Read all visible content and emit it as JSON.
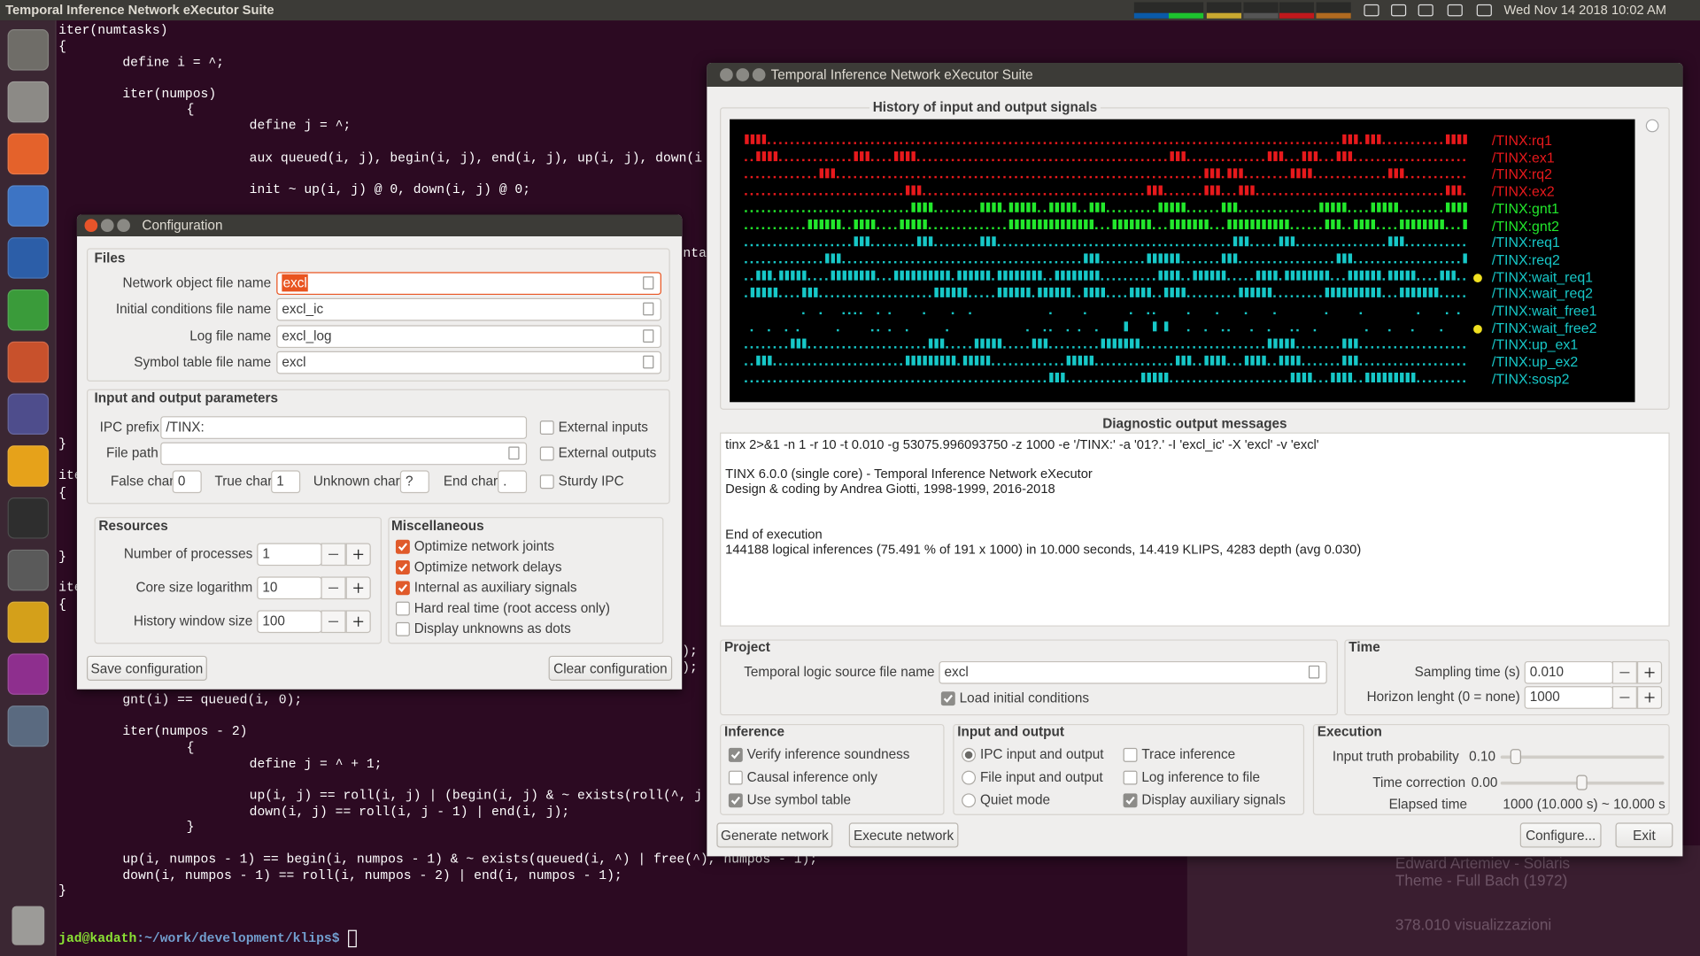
{
  "top_bar": {
    "title": "Temporal Inference Network eXecutor Suite",
    "clock": "Wed Nov 14 2018 10:02 AM"
  },
  "terminal": {
    "lines": [
      "iter(numtasks)",
      "{",
      "define i = ^;",
      "iter(numpos)",
      "{",
      "define  j = ^;",
      "aux queued(i, j), begin(i, j), end(i, j), up(i, j), down(i",
      "init ~ up(i, j) @ 0, down(i, j) @ 0;",
      "ntas",
      "}",
      "ite",
      "{",
      "}",
      "ite",
      "{",
      ");",
      ");",
      "gnt(i) == queued(i, 0);",
      "iter(numpos - 2)",
      "{",
      "define  j = ^ + 1;",
      "up(i, j) == roll(i, j) | (begin(i, j) & ~ exists(roll(^, j",
      "down(i, j) == roll(i, j - 1) | end(i, j);",
      "}",
      "up(i, numpos - 1) == begin(i, numpos - 1) & ~ exists(queued(i, ^) | free(^), numpos - 1);",
      "down(i, numpos - 1) == roll(i, numpos - 2) | end(i, numpos - 1);",
      "}"
    ],
    "prompt_user": "jad@kadath",
    "prompt_path": ":~/work/development/klips$"
  },
  "background": {
    "texts": [
      "Edward Artemiev - Solaris",
      "Theme - Full Bach (1972)",
      "378.010 visualizzazioni"
    ]
  },
  "config": {
    "title": "Configuration",
    "files": {
      "title": "Files",
      "fields": [
        {
          "label": "Network object file name",
          "value": "excl"
        },
        {
          "label": "Initial conditions file name",
          "value": "excl_ic"
        },
        {
          "label": "Log file name",
          "value": "excl_log"
        },
        {
          "label": "Symbol table file name",
          "value": "excl"
        }
      ]
    },
    "io": {
      "title": "Input and output parameters",
      "ipc_prefix_label": "IPC prefix",
      "ipc_prefix": "/TINX:",
      "file_path_label": "File path",
      "false_char_label": "False char",
      "false_char": "0",
      "true_char_label": "True char",
      "true_char": "1",
      "unknown_char_label": "Unknown char",
      "unknown_char": "?",
      "end_char_label": "End char",
      "end_char": ".",
      "checks": [
        {
          "label": "External inputs",
          "checked": false
        },
        {
          "label": "External outputs",
          "checked": false
        },
        {
          "label": "Sturdy IPC",
          "checked": false
        }
      ]
    },
    "resources": {
      "title": "Resources",
      "rows": [
        {
          "label": "Number of processes",
          "value": "1"
        },
        {
          "label": "Core size logarithm",
          "value": "10"
        },
        {
          "label": "History window size",
          "value": "100"
        }
      ]
    },
    "misc": {
      "title": "Miscellaneous",
      "checks": [
        {
          "label": "Optimize network joints",
          "checked": true
        },
        {
          "label": "Optimize network delays",
          "checked": true
        },
        {
          "label": "Internal as auxiliary signals",
          "checked": true
        },
        {
          "label": "Hard real time (root access only)",
          "checked": false
        },
        {
          "label": "Display unknowns as dots",
          "checked": false
        }
      ]
    },
    "buttons": [
      "Save configuration",
      "Clear configuration"
    ]
  },
  "main": {
    "title": "Temporal Inference Network eXecutor Suite",
    "history_title": "History of input and output signals",
    "signals": [
      {
        "name": "/TINX:rq1",
        "color": "#e8191c"
      },
      {
        "name": "/TINX:ex1",
        "color": "#e8191c"
      },
      {
        "name": "/TINX:rq2",
        "color": "#e8191c"
      },
      {
        "name": "/TINX:ex2",
        "color": "#e8191c"
      },
      {
        "name": "/TINX:gnt1",
        "color": "#22e82c"
      },
      {
        "name": "/TINX:gnt2",
        "color": "#22e82c"
      },
      {
        "name": "/TINX:req1",
        "color": "#17c8c8"
      },
      {
        "name": "/TINX:req2",
        "color": "#17c8c8"
      },
      {
        "name": "/TINX:wait_req1",
        "color": "#17c8c8",
        "marker": true
      },
      {
        "name": "/TINX:wait_req2",
        "color": "#17c8c8"
      },
      {
        "name": "/TINX:wait_free1",
        "color": "#17c8c8"
      },
      {
        "name": "/TINX:wait_free2",
        "color": "#17c8c8",
        "marker": true
      },
      {
        "name": "/TINX:up_ex1",
        "color": "#17c8c8"
      },
      {
        "name": "/TINX:up_ex2",
        "color": "#17c8c8"
      },
      {
        "name": "/TINX:sosp2",
        "color": "#17c8c8"
      }
    ],
    "diagnostic_title": "Diagnostic output messages",
    "messages": [
      "tinx 2>&1 -n 1 -r 10 -t 0.010 -g 53075.996093750 -z 1000 -e '/TINX:' -a '01?.' -I 'excl_ic' -X 'excl' -v 'excl'",
      "TINX 6.0.0 (single core) - Temporal Inference Network eXecutor",
      "Design & coding by Andrea Giotti, 1998-1999, 2016-2018",
      "End of execution",
      "144188 logical inferences (75.491 % of 191 x 1000) in 10.000 seconds, 14.419 KLIPS, 4283 depth (avg 0.030)"
    ],
    "project": {
      "title": "Project",
      "source_label": "Temporal logic source file name",
      "source": "excl",
      "load": {
        "label": "Load initial conditions",
        "checked": true
      }
    },
    "time": {
      "title": "Time",
      "sampling_label": "Sampling time (s)",
      "sampling": "0.010",
      "horizon_label": "Horizon lenght (0 = none)",
      "horizon": "1000"
    },
    "inference": {
      "title": "Inference",
      "checks": [
        {
          "label": "Verify inference soundness",
          "checked": true
        },
        {
          "label": "Causal inference only",
          "checked": false
        },
        {
          "label": "Use symbol table",
          "checked": true
        }
      ]
    },
    "io": {
      "title": "Input and output",
      "radios": [
        {
          "label": "IPC input and output",
          "selected": true
        },
        {
          "label": "File input and output",
          "selected": false
        },
        {
          "label": "Quiet mode",
          "selected": false
        }
      ],
      "checks": [
        {
          "label": "Trace inference",
          "checked": false
        },
        {
          "label": "Log inference to file",
          "checked": false
        },
        {
          "label": "Display auxiliary signals",
          "checked": true
        }
      ]
    },
    "execution": {
      "title": "Execution",
      "probability_label": "Input truth probability",
      "probability": "0.10",
      "correction_label": "Time correction",
      "correction": "0.00",
      "elapsed_label": "Elapsed time",
      "elapsed": "1000 (10.000 s) ~ 10.000 s"
    },
    "buttons": [
      "Generate network",
      "Execute network",
      "Configure...",
      "Exit"
    ]
  }
}
